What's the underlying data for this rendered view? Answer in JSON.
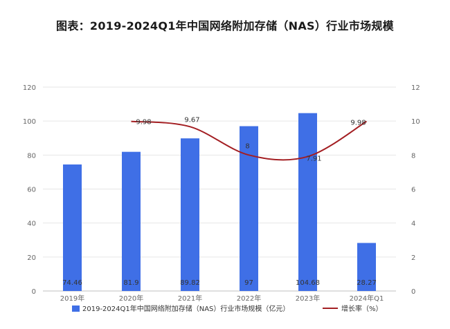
{
  "title": "图表：2019-2024Q1年中国网络附加存储（NAS）行业市场规模",
  "chart_data": {
    "type": "bar",
    "title": "图表：2019-2024Q1年中国网络附加存储（NAS）行业市场规模",
    "categories": [
      "2019年",
      "2020年",
      "2021年",
      "2022年",
      "2023年",
      "2024年Q1"
    ],
    "series": [
      {
        "name": "2019-2024Q1年中国网络附加存储（NAS）行业市场规模（亿元）",
        "type": "bar",
        "axis": "left",
        "color": "#3f6fe6",
        "values": [
          74.46,
          81.9,
          89.82,
          97,
          104.68,
          28.27
        ],
        "labels": [
          "74.46",
          "81.9",
          "89.82",
          "97",
          "104.68",
          "28.27"
        ]
      },
      {
        "name": "增长率（%）",
        "type": "line",
        "axis": "right",
        "color": "#a31e22",
        "values": [
          null,
          9.98,
          9.67,
          8,
          7.91,
          9.98
        ],
        "labels": [
          "",
          "9.98",
          "9.67",
          "8",
          "7.91",
          "9.98"
        ]
      }
    ],
    "y_left": {
      "min": 0,
      "max": 120,
      "ticks": [
        "0",
        "20",
        "40",
        "60",
        "80",
        "100",
        "120"
      ]
    },
    "y_right": {
      "min": 0,
      "max": 12,
      "ticks": [
        "0",
        "2",
        "4",
        "6",
        "8",
        "10",
        "12"
      ]
    },
    "grid": true,
    "legend": "bottom"
  }
}
